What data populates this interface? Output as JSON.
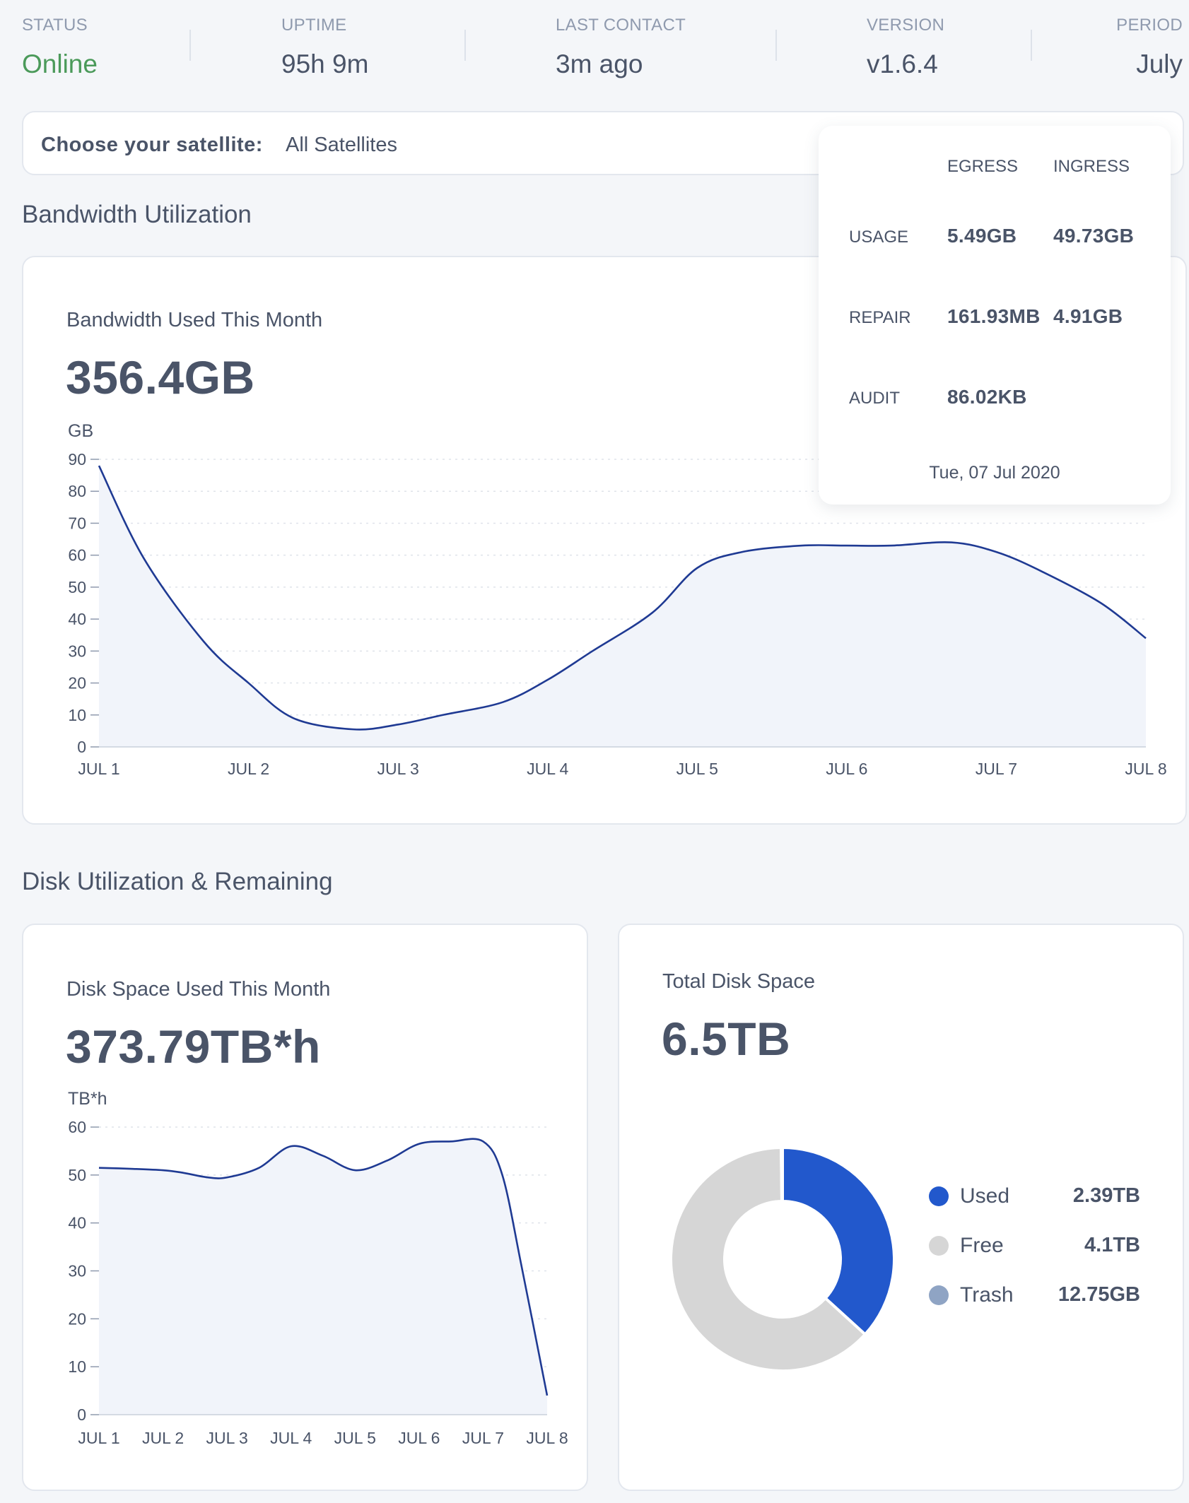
{
  "status_bar": {
    "status": {
      "label": "STATUS",
      "value": "Online"
    },
    "uptime": {
      "label": "UPTIME",
      "value": "95h 9m"
    },
    "last_contact": {
      "label": "LAST CONTACT",
      "value": "3m ago"
    },
    "version": {
      "label": "VERSION",
      "value": "v1.6.4"
    },
    "period": {
      "label": "PERIOD",
      "value": "July"
    }
  },
  "satellite_selector": {
    "label": "Choose your satellite:",
    "value": "All Satellites"
  },
  "bandwidth_section": {
    "title": "Bandwidth Utilization",
    "card_title": "Bandwidth Used This Month",
    "total": "356.4GB",
    "unit": "GB"
  },
  "tooltip": {
    "col_egress": "EGRESS",
    "col_ingress": "INGRESS",
    "rows": [
      {
        "label": "USAGE",
        "egress": "5.49GB",
        "ingress": "49.73GB"
      },
      {
        "label": "REPAIR",
        "egress": "161.93MB",
        "ingress": "4.91GB"
      },
      {
        "label": "AUDIT",
        "egress": "86.02KB",
        "ingress": ""
      }
    ],
    "date": "Tue, 07 Jul 2020"
  },
  "disk_section": {
    "title": "Disk Utilization & Remaining",
    "card_title": "Disk Space Used This Month",
    "total": "373.79TB*h",
    "unit": "TB*h"
  },
  "total_disk": {
    "card_title": "Total Disk Space",
    "total": "6.5TB",
    "legend": [
      {
        "label": "Used",
        "value": "2.39TB",
        "color": "#2258cc"
      },
      {
        "label": "Free",
        "value": "4.1TB",
        "color": "#d6d6d6"
      },
      {
        "label": "Trash",
        "value": "12.75GB",
        "color": "#8fa4c4"
      }
    ]
  },
  "colors": {
    "line": "#1f3a93",
    "fill": "#f1f4fa",
    "grid": "#dfe3ea"
  },
  "chart_data": [
    {
      "type": "area",
      "title": "Bandwidth Used This Month",
      "ylabel": "GB",
      "categories": [
        "JUL 1",
        "JUL 2",
        "JUL 3",
        "JUL 4",
        "JUL 5",
        "JUL 6",
        "JUL 7",
        "JUL 8"
      ],
      "x": [
        0,
        0.3,
        0.7,
        1,
        1.3,
        1.7,
        2,
        2.3,
        2.7,
        3,
        3.3,
        3.7,
        4,
        4.3,
        4.7,
        5,
        5.3,
        5.7,
        6,
        6.3,
        6.7,
        7
      ],
      "values": [
        88,
        59,
        33,
        20,
        9,
        5.5,
        7,
        10,
        14,
        21,
        30,
        42,
        56,
        61,
        63,
        63,
        63,
        64,
        61,
        55,
        45,
        34
      ],
      "yticks": [
        0,
        10,
        20,
        30,
        40,
        50,
        60,
        70,
        80,
        90
      ],
      "ylim": [
        0,
        90
      ]
    },
    {
      "type": "area",
      "title": "Disk Space Used This Month",
      "ylabel": "TB*h",
      "categories": [
        "JUL 1",
        "JUL 2",
        "JUL 3",
        "JUL 4",
        "JUL 5",
        "JUL 6",
        "JUL 7",
        "JUL 8"
      ],
      "x": [
        0,
        0.5,
        1,
        1.3,
        1.7,
        2,
        2.5,
        3,
        3.5,
        4,
        4.5,
        5,
        5.5,
        6,
        6.3,
        6.6,
        7
      ],
      "values": [
        51.5,
        51.3,
        51,
        50.5,
        49.5,
        49.5,
        51.5,
        56,
        54,
        51,
        53,
        56.5,
        57,
        57,
        50,
        31,
        4
      ],
      "yticks": [
        0,
        10,
        20,
        30,
        40,
        50,
        60
      ],
      "ylim": [
        0,
        60
      ]
    },
    {
      "type": "pie",
      "title": "Total Disk Space",
      "categories": [
        "Used",
        "Free",
        "Trash"
      ],
      "values": [
        2.39,
        4.1,
        0.01275
      ],
      "units": "TB"
    }
  ]
}
